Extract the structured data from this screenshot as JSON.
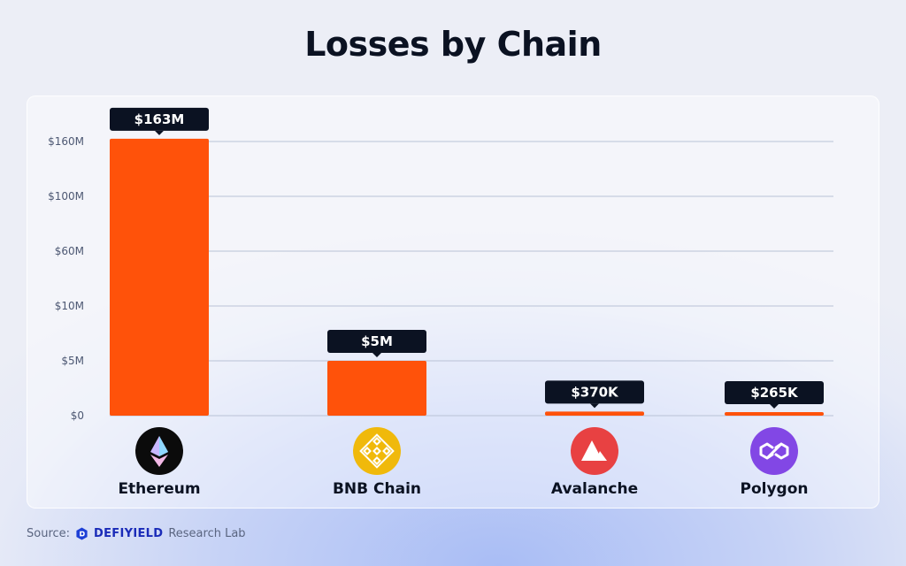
{
  "title": "Losses by Chain",
  "chart_data": {
    "type": "bar",
    "title": "Losses by Chain",
    "categories": [
      "Ethereum",
      "BNB Chain",
      "Avalanche",
      "Polygon"
    ],
    "values": [
      163000000,
      5000000,
      370000,
      265000
    ],
    "data_labels": [
      "$163M",
      "$5M",
      "$370K",
      "$265K"
    ],
    "y_tick_labels": [
      "$0",
      "$5M",
      "$10M",
      "$60M",
      "$100M",
      "$160M"
    ],
    "y_scale": "non-linear (tick labels as printed)",
    "grid": true,
    "bar_color": "#ff520a",
    "label_bg": "#0b1222",
    "icons": [
      "ethereum-icon",
      "bnb-icon",
      "avalanche-icon",
      "polygon-icon"
    ],
    "icon_colors": [
      "#0b0b0b",
      "#f0b90b",
      "#e84142",
      "#8247e5"
    ]
  },
  "source": {
    "prefix": "Source:",
    "brand": "DEFIYIELD",
    "suffix": "Research Lab"
  }
}
